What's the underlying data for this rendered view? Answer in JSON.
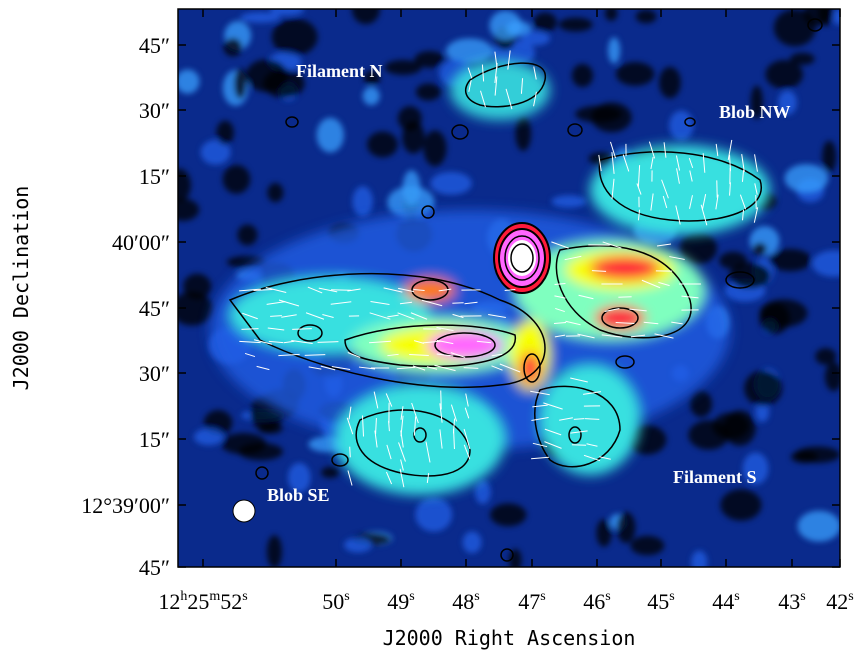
{
  "image": {
    "xlabel": "J2000 Right Ascension",
    "ylabel": "J2000 Declination",
    "ra_ticks": [
      {
        "h": "12",
        "m": "25",
        "s": "52"
      },
      {
        "s": "50"
      },
      {
        "s": "49"
      },
      {
        "s": "48"
      },
      {
        "s": "47"
      },
      {
        "s": "46"
      },
      {
        "s": "45"
      },
      {
        "s": "44"
      },
      {
        "s": "43"
      },
      {
        "s": "42"
      }
    ],
    "dec_ticks": [
      {
        "text": "45″"
      },
      {
        "text": "30″"
      },
      {
        "text": "15″"
      },
      {
        "text": "40′00″"
      },
      {
        "text": "45″"
      },
      {
        "text": "30″"
      },
      {
        "text": "15″"
      },
      {
        "text": "12°39′00″"
      },
      {
        "text": "45″"
      }
    ],
    "annotations": [
      "Filament N",
      "Blob NW",
      "Filament S",
      "Blob SE"
    ],
    "colormap": [
      "#000000",
      "#0a2a8c",
      "#1f5fe6",
      "#3aa0ff",
      "#38e0e0",
      "#7fffbf",
      "#f7ff00",
      "#ff7a00",
      "#ff1a3a",
      "#ff66ff",
      "#ffffff"
    ],
    "beam": "white-circle"
  }
}
